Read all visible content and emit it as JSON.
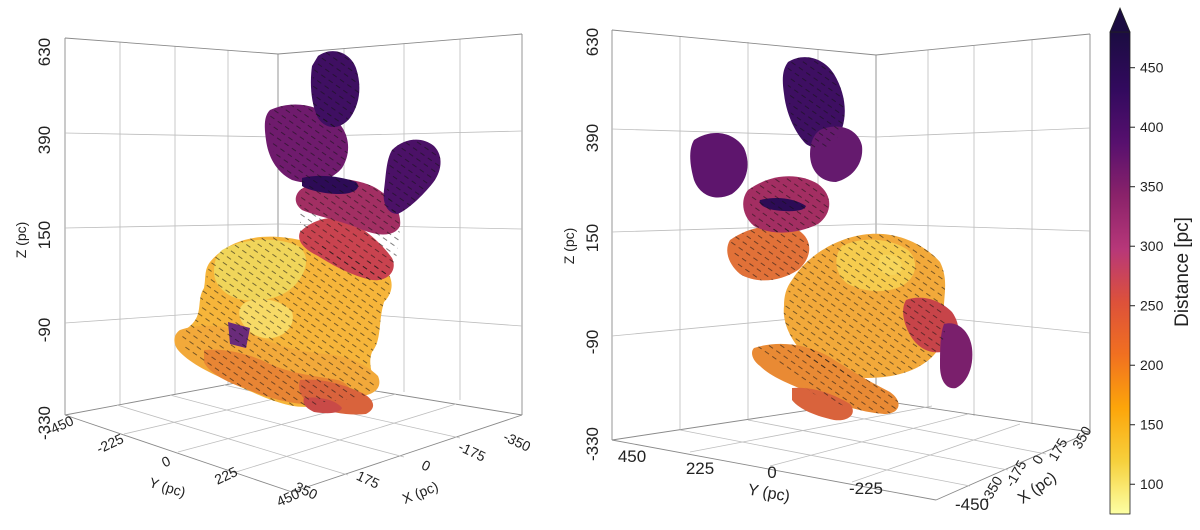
{
  "chart_data": [
    {
      "type": "scatter",
      "panel": "left",
      "title": "",
      "xlabel": "X (pc)",
      "ylabel": "Y (pc)",
      "zlabel": "Z (pc)",
      "x_ticks": [
        "-350",
        "-175",
        "0",
        "175",
        "350"
      ],
      "y_ticks": [
        "-450",
        "-225",
        "0",
        "225",
        "450"
      ],
      "z_ticks": [
        "630",
        "390",
        "150",
        "-90",
        "-330"
      ],
      "xlim": [
        -350,
        350
      ],
      "ylim": [
        -450,
        450
      ],
      "zlim": [
        -330,
        630
      ],
      "grid": true,
      "color_by": "distance"
    },
    {
      "type": "scatter",
      "panel": "right",
      "title": "",
      "xlabel": "X (pc)",
      "ylabel": "Y (pc)",
      "zlabel": "Z (pc)",
      "x_ticks": [
        "350",
        "175",
        "0",
        "-175",
        "-350"
      ],
      "y_ticks": [
        "450",
        "225",
        "0",
        "-225",
        "-450"
      ],
      "z_ticks": [
        "630",
        "390",
        "150",
        "-90",
        "-330"
      ],
      "xlim": [
        -350,
        350
      ],
      "ylim": [
        -450,
        450
      ],
      "zlim": [
        -330,
        630
      ],
      "grid": true,
      "color_by": "distance"
    }
  ],
  "colorbar": {
    "label": "Distance [pc]",
    "ticks": [
      "450",
      "400",
      "350",
      "300",
      "250",
      "200",
      "150",
      "100"
    ],
    "range": [
      75,
      480
    ],
    "colormap": "inferno",
    "colors": [
      "#fcffa4",
      "#f7d03c",
      "#fca50a",
      "#f17020",
      "#dd513a",
      "#b73779",
      "#8a226a",
      "#57106e",
      "#320a5e",
      "#1b0c41"
    ]
  }
}
